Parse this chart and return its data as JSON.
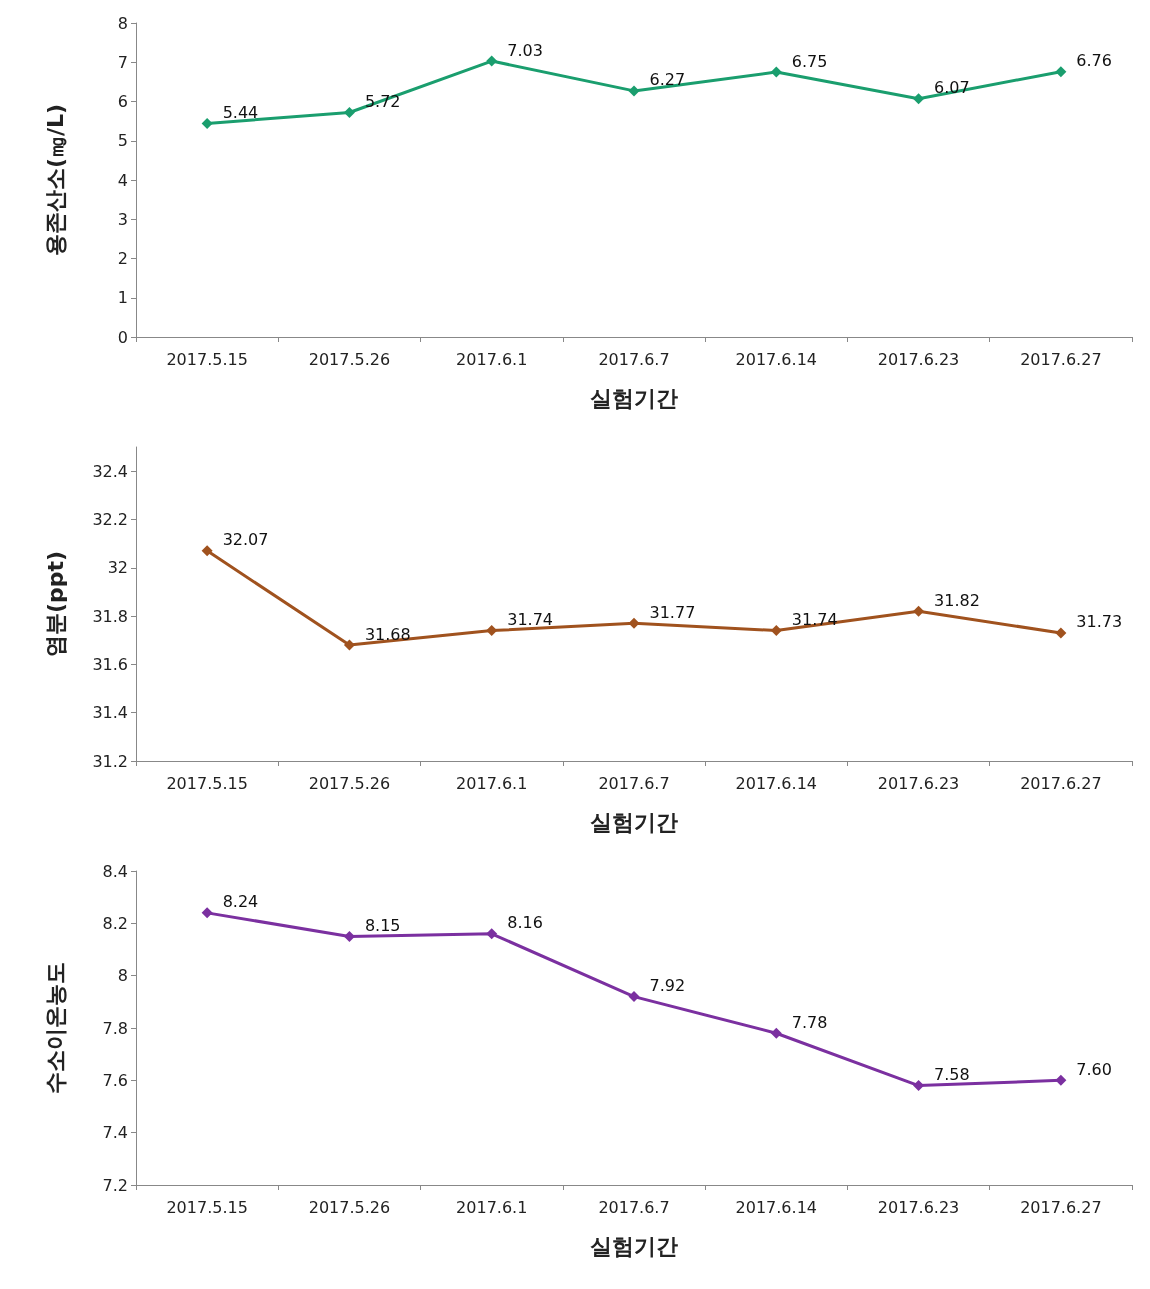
{
  "chart_data": [
    {
      "type": "line",
      "ylabel": "용존산소(㎎/L)",
      "xlabel": "실험기간",
      "categories": [
        "2017.5.15",
        "2017.5.26",
        "2017.6.1",
        "2017.6.7",
        "2017.6.14",
        "2017.6.23",
        "2017.6.27"
      ],
      "series": [
        {
          "color": "#1a9e6e",
          "values": [
            5.44,
            5.72,
            7.03,
            6.27,
            6.75,
            6.07,
            6.76
          ],
          "value_labels": [
            "5.44",
            "5.72",
            "7.03",
            "6.27",
            "6.75",
            "6.07",
            "6.76"
          ]
        }
      ],
      "ylim": [
        0,
        8
      ],
      "yticks": [
        0,
        1,
        2,
        3,
        4,
        5,
        6,
        7,
        8
      ],
      "marker": "diamond",
      "grid": false
    },
    {
      "type": "line",
      "ylabel": "염분(ppt)",
      "xlabel": "실험기간",
      "categories": [
        "2017.5.15",
        "2017.5.26",
        "2017.6.1",
        "2017.6.7",
        "2017.6.14",
        "2017.6.23",
        "2017.6.27"
      ],
      "series": [
        {
          "color": "#a0521e",
          "values": [
            32.07,
            31.68,
            31.74,
            31.77,
            31.74,
            31.82,
            31.73
          ],
          "value_labels": [
            "32.07",
            "31.68",
            "31.74",
            "31.77",
            "31.74",
            "31.82",
            "31.73"
          ]
        }
      ],
      "ylim": [
        31.2,
        32.5
      ],
      "yticks": [
        {
          "value": 31.2,
          "label": "31.2"
        },
        {
          "value": 31.4,
          "label": "31.4"
        },
        {
          "value": 31.6,
          "label": "31.6"
        },
        {
          "value": 31.8,
          "label": "31.8"
        },
        32,
        {
          "value": 32.2,
          "label": "32.2"
        },
        {
          "value": 32.4,
          "label": "32.4"
        }
      ],
      "marker": "diamond",
      "grid": false
    },
    {
      "type": "line",
      "ylabel": "수소이온농도",
      "xlabel": "실험기간",
      "categories": [
        "2017.5.15",
        "2017.5.26",
        "2017.6.1",
        "2017.6.7",
        "2017.6.14",
        "2017.6.23",
        "2017.6.27"
      ],
      "series": [
        {
          "color": "#7b30a0",
          "values": [
            8.24,
            8.15,
            8.16,
            7.92,
            7.78,
            7.58,
            7.6
          ],
          "value_labels": [
            "8.24",
            "8.15",
            "8.16",
            "7.92",
            "7.78",
            "7.58",
            "7.60"
          ]
        }
      ],
      "ylim": [
        7.2,
        8.4
      ],
      "yticks": [
        {
          "value": 7.2,
          "label": "7.2"
        },
        {
          "value": 7.4,
          "label": "7.4"
        },
        {
          "value": 7.6,
          "label": "7.6"
        },
        {
          "value": 7.8,
          "label": "7.8"
        },
        8,
        {
          "value": 8.2,
          "label": "8.2"
        },
        {
          "value": 8.4,
          "label": "8.4"
        }
      ],
      "marker": "diamond",
      "grid": false
    }
  ]
}
